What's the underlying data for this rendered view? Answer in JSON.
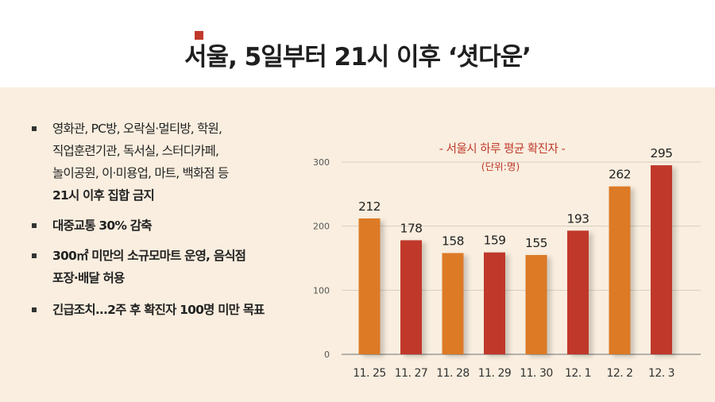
{
  "header": {
    "title": "서울, 5일부터 21시 이후 ‘셧다운’"
  },
  "bullets": {
    "b1_line1": "영화관, PC방, 오락실·멀티방, 학원,",
    "b1_line2": "직업훈련기관, 독서실, 스터디카페,",
    "b1_line3": "놀이공원, 이·미용업, 마트, 백화점 등",
    "b1_line4": "21시 이후 집합 금지",
    "b2": "대중교통 30% 감축",
    "b3_line1": "300㎡ 미만의 소규모마트 운영, 음식점",
    "b3_line2": "포장·배달 허용",
    "b4": "긴급조치...2주 후 확진자 100명 미만 목표"
  },
  "colors": {
    "orange": "#dc7a25",
    "red": "#c0392b",
    "title_red": "#c0392b"
  },
  "chart_data": {
    "type": "bar",
    "title": "- 서울시 하루 평균 확진자 -",
    "subtitle": "(단위:명)",
    "categories": [
      "11. 25",
      "11. 27",
      "11. 28",
      "11. 29",
      "11. 30",
      "12. 1",
      "12. 2",
      "12. 3"
    ],
    "values": [
      212,
      178,
      158,
      159,
      155,
      193,
      262,
      295
    ],
    "bar_colors": [
      "#dc7a25",
      "#c0392b",
      "#dc7a25",
      "#c0392b",
      "#dc7a25",
      "#c0392b",
      "#dc7a25",
      "#c0392b"
    ],
    "y_ticks": [
      "0",
      "100",
      "200",
      "300"
    ],
    "ylim": [
      0,
      300
    ],
    "grid": true
  }
}
